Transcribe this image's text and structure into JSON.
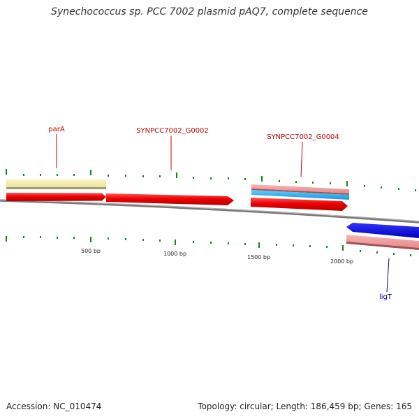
{
  "title": "Synechococcus sp. PCC 7002 plasmid pAQ7, complete sequence",
  "footer": {
    "accession": "Accession: NC_010474",
    "summary": "Topology: circular; Length: 186,459 bp; Genes: 165"
  },
  "genes": {
    "parA": {
      "label": "parA",
      "color": "#cc0000"
    },
    "g0002": {
      "label": "SYNPCC7002_G0002",
      "color": "#cc0000"
    },
    "g0004": {
      "label": "SYNPCC7002_G0004",
      "color": "#cc0000"
    },
    "ligT": {
      "label": "ligT",
      "color": "#000099"
    }
  },
  "scale": {
    "t500": "500 bp",
    "t1000": "1000 bp",
    "t1500": "1500 bp",
    "t2000": "2000 bp"
  },
  "colors": {
    "cds": "#ee0000",
    "gene_feature": "#f2e6a6",
    "gene_feature_pink": "#ee9999",
    "cyan": "#22aaee",
    "blue": "#0000ee",
    "tick": "#118811",
    "backbone": "#888888"
  }
}
